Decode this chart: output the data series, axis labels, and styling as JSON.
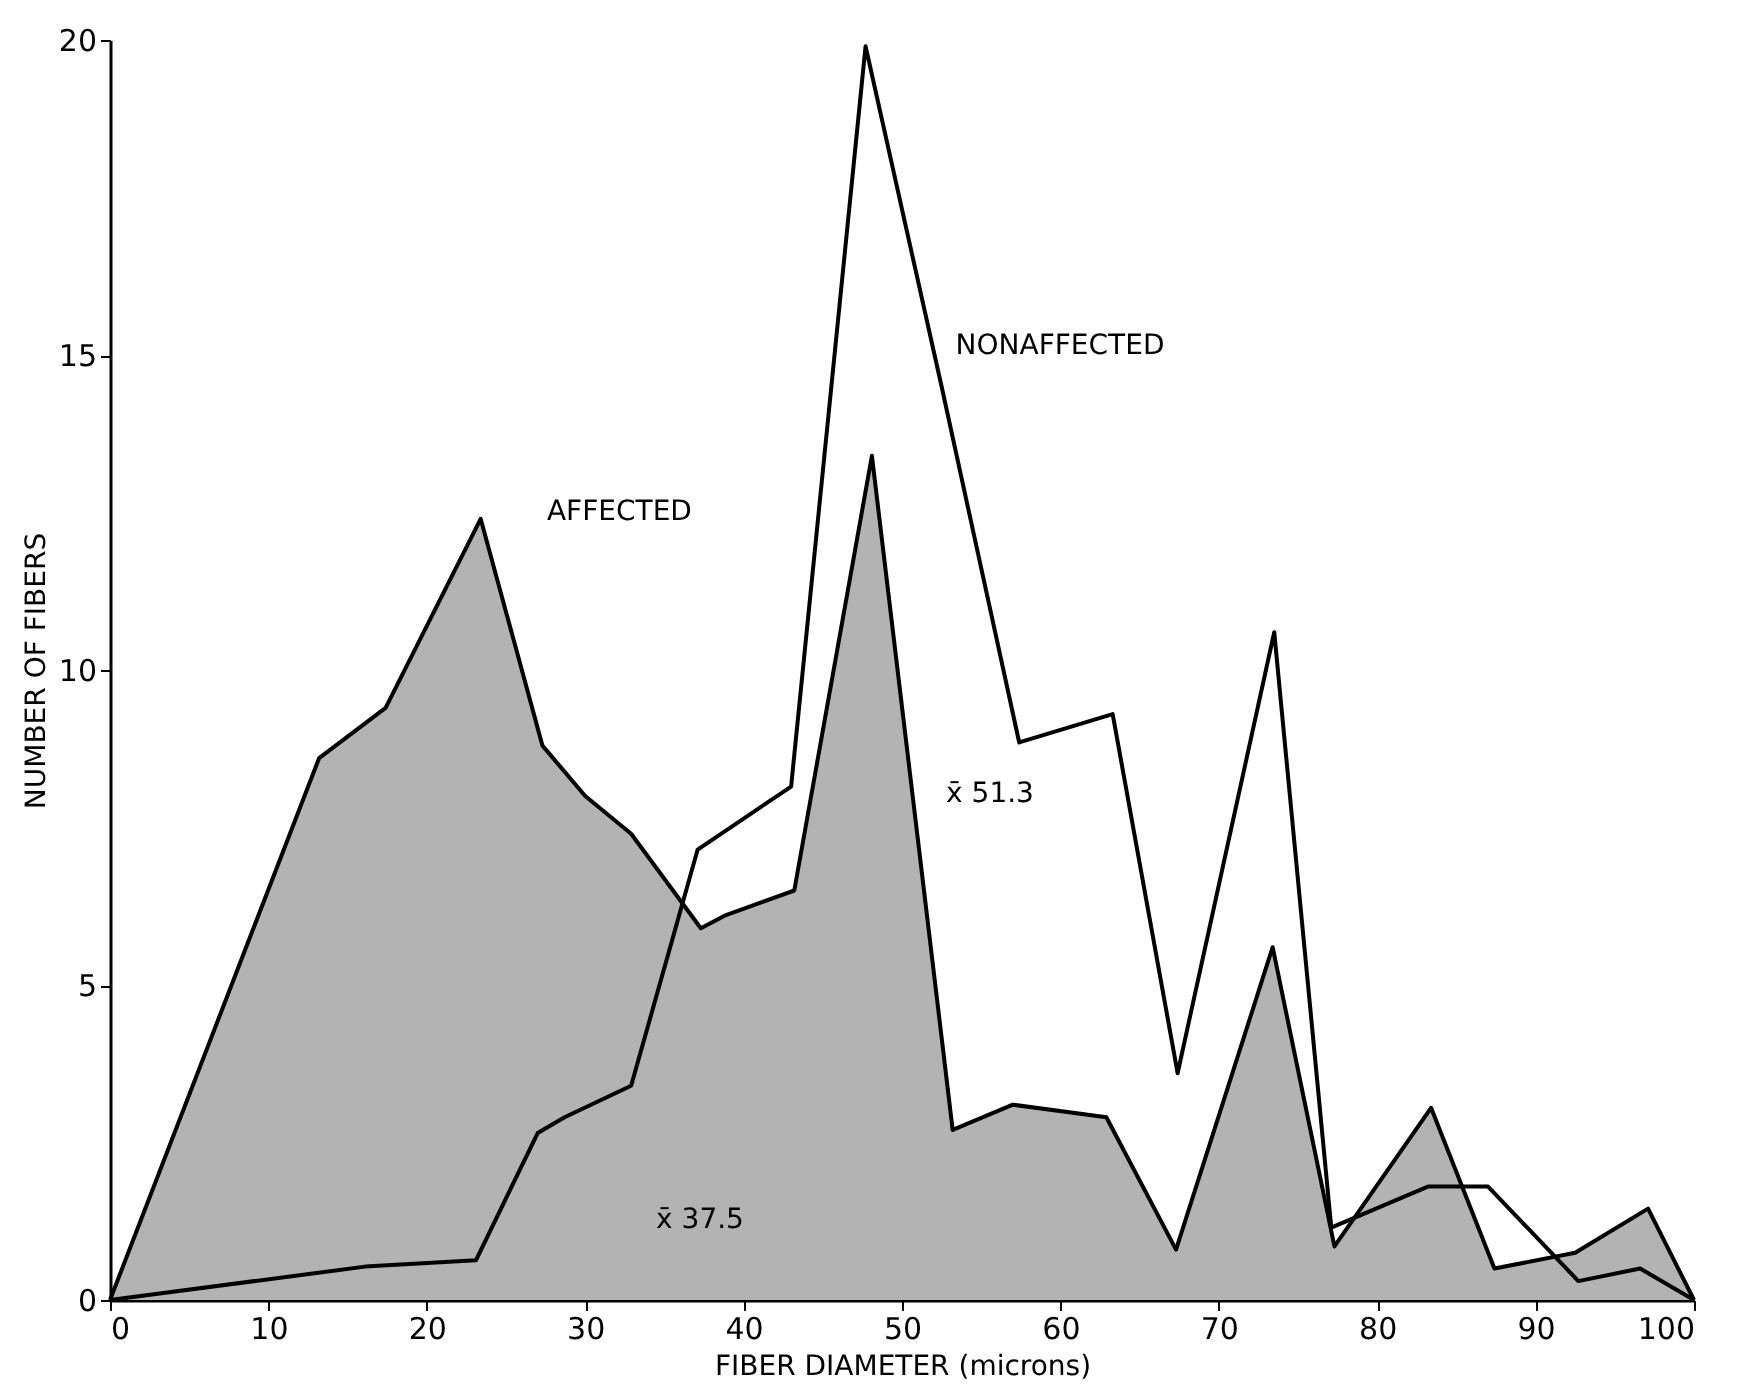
{
  "chart_data": {
    "type": "line",
    "xlabel": "FIBER DIAMETER (microns)",
    "ylabel": "NUMBER OF FIBERS",
    "xlim": [
      0,
      100
    ],
    "xticks": [
      0,
      10,
      20,
      30,
      40,
      50,
      60,
      70,
      80,
      90,
      100
    ],
    "ylim": [
      0,
      20
    ],
    "yticks": [
      0,
      5,
      10,
      15,
      20
    ],
    "grid": false,
    "series": [
      {
        "name": "AFFECTED",
        "type": "area",
        "color": "#b3b3b3",
        "x": [
          0,
          13.2,
          17.4,
          23.4,
          27.3,
          30.0,
          32.9,
          37.3,
          38.8,
          43.2,
          48.1,
          53.2,
          57.0,
          62.9,
          67.3,
          73.4,
          77.3,
          83.4,
          87.4,
          92.5,
          97.1,
          100
        ],
        "values": [
          0,
          8.6,
          9.4,
          12.4,
          8.8,
          8.0,
          7.4,
          5.9,
          6.1,
          6.5,
          13.4,
          2.7,
          3.1,
          2.9,
          0.8,
          5.6,
          0.85,
          3.05,
          0.5,
          0.75,
          1.45,
          0
        ]
      },
      {
        "name": "NONAFFECTED",
        "color": "#000000",
        "x": [
          0,
          16.1,
          23.1,
          27.0,
          28.7,
          32.9,
          37.1,
          43.0,
          47.7,
          52.5,
          57.4,
          63.3,
          67.4,
          73.5,
          77.1,
          83.2,
          87.0,
          92.7,
          96.6,
          100
        ],
        "values": [
          0,
          0.53,
          0.63,
          2.65,
          2.9,
          3.4,
          7.15,
          8.15,
          19.9,
          14.5,
          8.85,
          9.3,
          3.6,
          10.6,
          1.15,
          1.8,
          1.8,
          0.3,
          0.5,
          0
        ]
      }
    ],
    "annotations": [
      "x̄ 37.5",
      "x̄ 51.3"
    ]
  }
}
